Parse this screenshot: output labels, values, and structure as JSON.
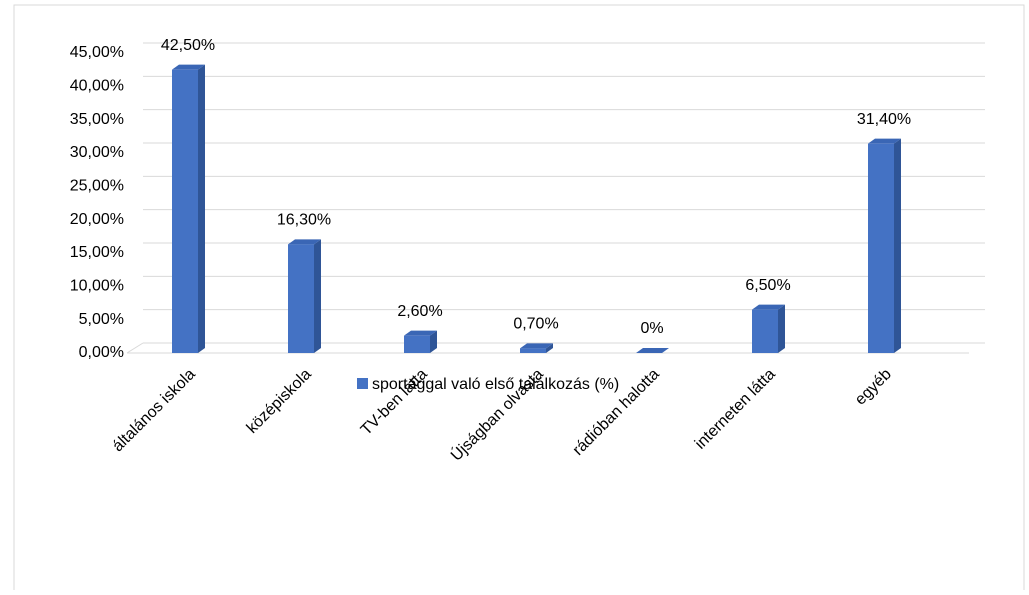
{
  "chart_data": {
    "type": "bar3d",
    "categories": [
      "általános iskola",
      "középiskola",
      "TV-ben látta",
      "Újságban olvasta",
      "rádióban halotta",
      "interneten látta",
      "egyéb"
    ],
    "series": [
      {
        "name": "sportággal való első találkozás (%)",
        "color": "#4472c4",
        "values": [
          42.5,
          16.3,
          2.6,
          0.7,
          0,
          6.5,
          31.4
        ],
        "value_labels": [
          "42,50%",
          "16,30%",
          "2,60%",
          "0,70%",
          "0%",
          "6,50%",
          "31,40%"
        ]
      }
    ],
    "ylim": [
      0,
      45
    ],
    "yticks": [
      {
        "value": 0,
        "label": "0,00%"
      },
      {
        "value": 5,
        "label": "5,00%"
      },
      {
        "value": 10,
        "label": "10,00%"
      },
      {
        "value": 15,
        "label": "15,00%"
      },
      {
        "value": 20,
        "label": "20,00%"
      },
      {
        "value": 25,
        "label": "25,00%"
      },
      {
        "value": 30,
        "label": "30,00%"
      },
      {
        "value": 35,
        "label": "35,00%"
      },
      {
        "value": 40,
        "label": "40,00%"
      },
      {
        "value": 45,
        "label": "45,00%"
      }
    ],
    "grid": true,
    "legend": "bottom"
  }
}
